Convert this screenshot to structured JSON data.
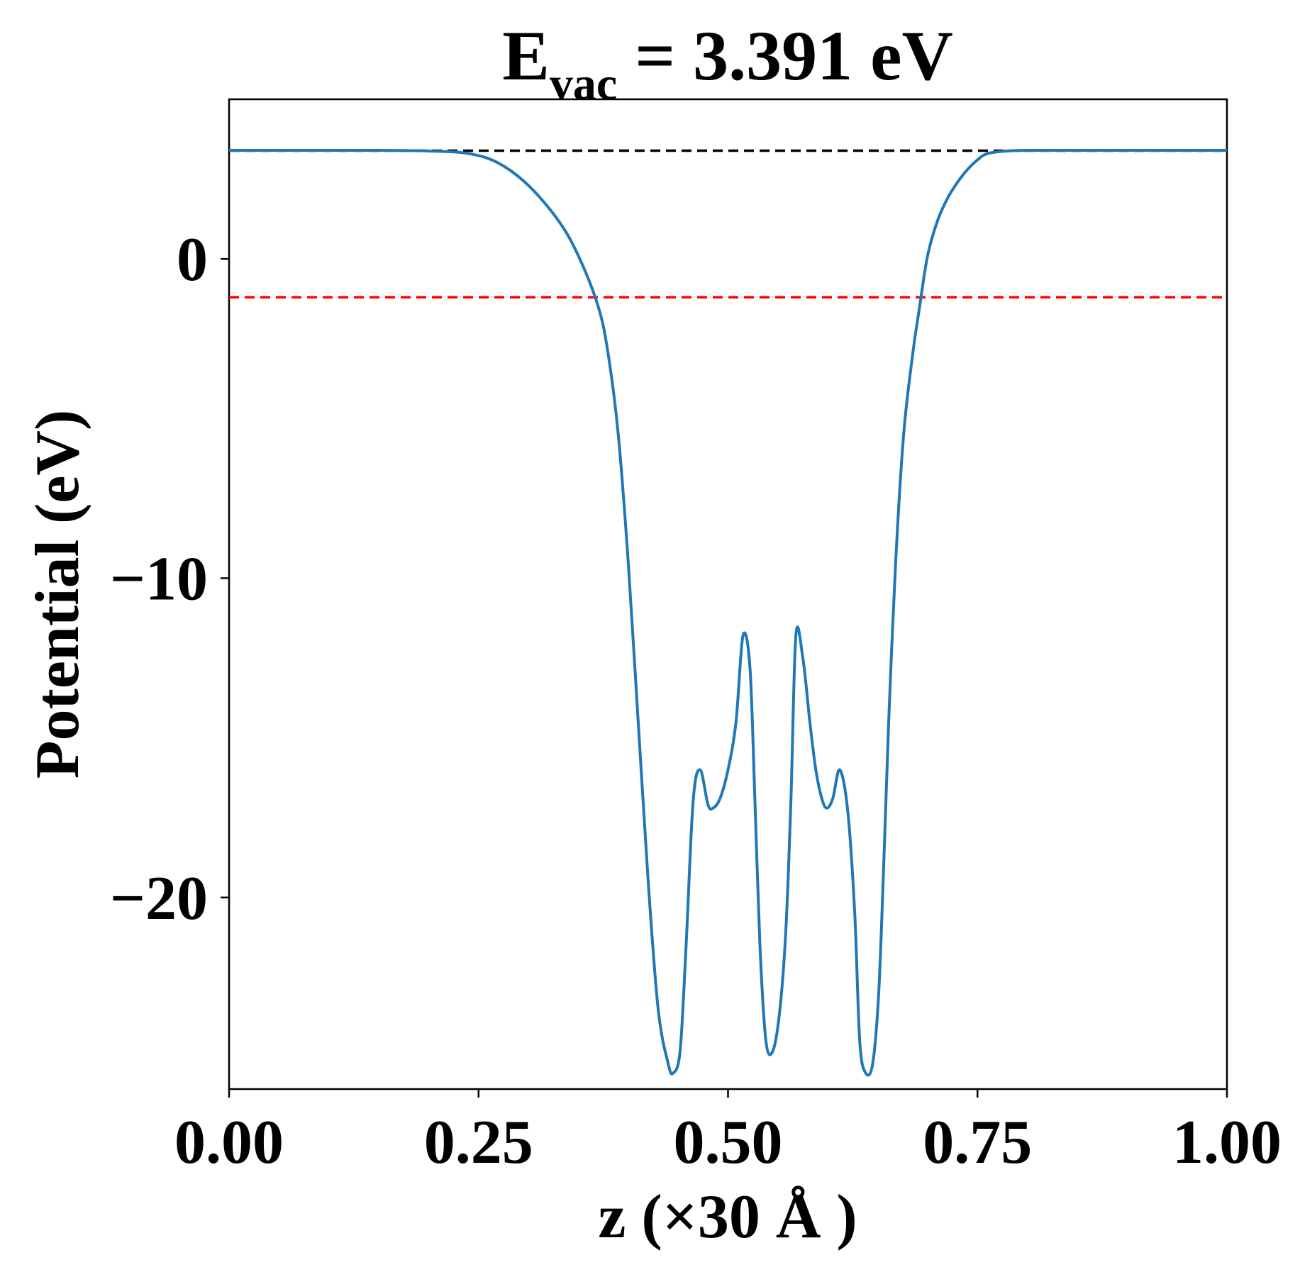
{
  "chart_data": {
    "type": "line",
    "title": {
      "main": "E",
      "sub": "vac",
      "rest": " = 3.391 eV"
    },
    "xlabel": "z (×30 Å )",
    "ylabel": "Potential (eV)",
    "xlim": [
      0,
      1
    ],
    "ylim": [
      -26,
      5
    ],
    "x_ticks": [
      0,
      0.25,
      0.5,
      0.75,
      1.0
    ],
    "x_tick_labels": [
      "0.00",
      "0.25",
      "0.50",
      "0.75",
      "1.00"
    ],
    "y_ticks": [
      0,
      -10,
      -20
    ],
    "y_tick_labels": [
      "0",
      "−10",
      "−20"
    ],
    "grid": false,
    "legend": "none",
    "reference_lines": [
      {
        "y": 3.391,
        "color": "#000000",
        "style": "dashed"
      },
      {
        "y": -1.2,
        "color": "#ff0000",
        "style": "dashed"
      }
    ],
    "series": [
      {
        "color": "#1f77b4",
        "x": [
          0.0,
          0.05,
          0.1,
          0.15,
          0.2,
          0.24,
          0.27,
          0.3,
          0.33,
          0.35,
          0.37,
          0.38,
          0.39,
          0.4,
          0.41,
          0.42,
          0.43,
          0.44,
          0.445,
          0.452,
          0.458,
          0.465,
          0.472,
          0.48,
          0.485,
          0.492,
          0.5,
          0.508,
          0.515,
          0.522,
          0.527,
          0.532,
          0.538,
          0.545,
          0.552,
          0.558,
          0.563,
          0.568,
          0.575,
          0.582,
          0.588,
          0.594,
          0.599,
          0.605,
          0.612,
          0.62,
          0.627,
          0.632,
          0.638,
          0.645,
          0.651,
          0.656,
          0.661,
          0.668,
          0.676,
          0.685,
          0.692,
          0.7,
          0.71,
          0.72,
          0.73,
          0.74,
          0.75,
          0.76,
          0.78,
          0.8,
          0.83,
          0.86,
          0.9,
          0.95,
          1.0
        ],
        "y": [
          3.4,
          3.4,
          3.4,
          3.4,
          3.38,
          3.3,
          3.0,
          2.3,
          1.2,
          0.1,
          -1.5,
          -3.0,
          -5.5,
          -9.5,
          -14.5,
          -19.5,
          -23.5,
          -25.2,
          -25.5,
          -24.8,
          -21.5,
          -17.0,
          -16.0,
          -17.1,
          -17.2,
          -16.9,
          -16.0,
          -14.5,
          -11.8,
          -12.8,
          -17.0,
          -21.5,
          -24.5,
          -24.8,
          -23.5,
          -21.0,
          -17.0,
          -11.8,
          -12.5,
          -14.5,
          -16.0,
          -16.9,
          -17.2,
          -16.9,
          -16.0,
          -17.3,
          -20.5,
          -24.5,
          -25.5,
          -25.2,
          -23.0,
          -19.0,
          -14.5,
          -9.5,
          -5.5,
          -3.0,
          -1.5,
          0.1,
          1.2,
          1.9,
          2.4,
          2.8,
          3.1,
          3.3,
          3.38,
          3.4,
          3.4,
          3.4,
          3.4,
          3.4,
          3.4
        ]
      }
    ]
  }
}
